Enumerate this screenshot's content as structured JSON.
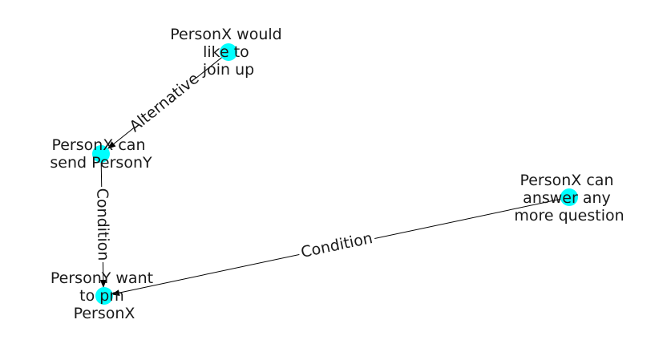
{
  "colors": {
    "node_fill": "#00ffff",
    "edge_stroke": "#000000",
    "text": "#1a1a1a",
    "background": "#ffffff"
  },
  "nodes": [
    {
      "id": "n1",
      "lines": [
        "PersonX would",
        "like to",
        "join up"
      ]
    },
    {
      "id": "n2",
      "lines": [
        "PersonX can",
        "send PersonY"
      ]
    },
    {
      "id": "n3",
      "lines": [
        "PersonY want",
        "to pm",
        "PersonX"
      ]
    },
    {
      "id": "n4",
      "lines": [
        "PersonX can",
        "answer any",
        "more question"
      ]
    }
  ],
  "edges": [
    {
      "id": "e1",
      "label": "Alternative"
    },
    {
      "id": "e2",
      "label": "Condition"
    },
    {
      "id": "e3",
      "label": "Condition"
    }
  ]
}
